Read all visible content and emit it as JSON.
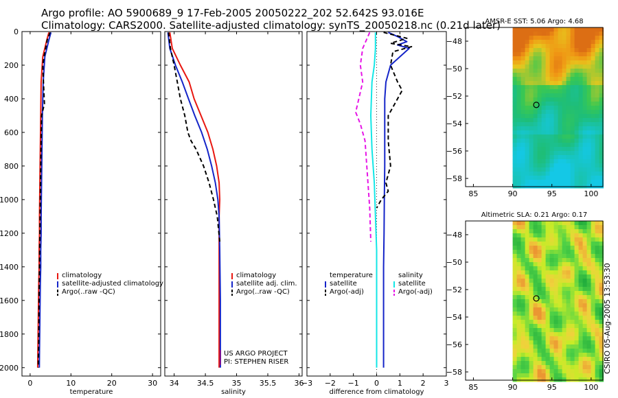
{
  "header": {
    "line1": "Argo profile: AO 5900689_9 17-Feb-2005 20050222_202 52.642S 93.016E",
    "line2": "Climatology: CARS2000. Satellite-adjusted climatology: synTS_20050218.nc (0.21d later)"
  },
  "colors": {
    "climatology": "#e8160f",
    "satellite": "#1424c8",
    "argo": "#000000",
    "salinity_sat": "#12e6e6",
    "argo_adj": "#e614e6"
  },
  "chart_data": [
    {
      "type": "line",
      "id": "temperature",
      "xlabel": "temperature",
      "ylabel": "",
      "xlim": [
        -2,
        32
      ],
      "ylim": [
        2050,
        0
      ],
      "xticks": [
        0,
        10,
        20,
        30
      ],
      "yticks": [
        0,
        200,
        400,
        600,
        800,
        1000,
        1200,
        1400,
        1600,
        1800,
        2000
      ],
      "series": [
        {
          "name": "climatology",
          "color": "#e8160f",
          "dash": "",
          "x": [
            4.6,
            4.1,
            3.1,
            2.7,
            2.6,
            2.5,
            2.4,
            2.3,
            2.3,
            2.2,
            2.2,
            2.1,
            2.0,
            1.9,
            1.85
          ],
          "y": [
            5,
            50,
            150,
            300,
            500,
            700,
            900,
            1100,
            1200,
            1300,
            1400,
            1500,
            1700,
            1900,
            2000
          ]
        },
        {
          "name": "satellite-adjusted climatology",
          "color": "#1424c8",
          "dash": "",
          "x": [
            5.1,
            4.6,
            3.6,
            3.2,
            3.0,
            2.9,
            2.8,
            2.7,
            2.7,
            2.6,
            2.6,
            2.5,
            2.4,
            2.3,
            2.25
          ],
          "y": [
            5,
            50,
            150,
            300,
            500,
            700,
            900,
            1100,
            1200,
            1300,
            1400,
            1500,
            1700,
            1900,
            2000
          ]
        },
        {
          "name": "Argo(..raw -QC)",
          "color": "#000000",
          "dash": "6,4",
          "x": [
            4.9,
            4.2,
            3.8,
            3.4,
            3.1,
            3.3,
            3.5,
            2.8,
            2.7,
            2.6,
            2.5,
            2.4,
            2.3,
            2.2,
            2.15,
            2.1,
            2.0,
            2.0
          ],
          "y": [
            5,
            50,
            100,
            150,
            200,
            320,
            430,
            500,
            650,
            800,
            1000,
            1200,
            1400,
            1550,
            1700,
            1850,
            1950,
            2000
          ]
        }
      ],
      "legend": {
        "position": "lower-middle",
        "entries": [
          "climatology",
          "satellite-adjusted climatology",
          "Argo(..raw -QC)"
        ]
      }
    },
    {
      "type": "line",
      "id": "salinity",
      "xlabel": "salinity",
      "ylabel": "",
      "xlim": [
        33.85,
        36.05
      ],
      "ylim": [
        2050,
        0
      ],
      "xticks": [
        34,
        34.5,
        35,
        35.5,
        36
      ],
      "xticklabels": [
        "34",
        "34.5",
        "35",
        "35.5",
        "36"
      ],
      "series": [
        {
          "name": "climatology",
          "color": "#e8160f",
          "dash": "",
          "x": [
            33.93,
            33.97,
            34.1,
            34.24,
            34.32,
            34.43,
            34.54,
            34.62,
            34.68,
            34.72,
            34.73,
            34.72,
            34.72,
            34.72,
            34.72
          ],
          "y": [
            5,
            100,
            200,
            300,
            400,
            500,
            600,
            700,
            800,
            900,
            1000,
            1100,
            1300,
            1600,
            2000
          ]
        },
        {
          "name": "satellite adj. clim.",
          "color": "#1424c8",
          "dash": "",
          "x": [
            33.9,
            33.93,
            34.02,
            34.13,
            34.23,
            34.33,
            34.44,
            34.53,
            34.6,
            34.66,
            34.7,
            34.72,
            34.73,
            34.74,
            34.74
          ],
          "y": [
            5,
            100,
            200,
            300,
            400,
            500,
            600,
            700,
            800,
            900,
            1000,
            1100,
            1300,
            1600,
            2000
          ]
        },
        {
          "name": "Argo(..raw -QC)",
          "color": "#000000",
          "dash": "6,4",
          "x": [
            33.91,
            33.94,
            34.0,
            34.05,
            34.1,
            34.17,
            34.22,
            34.27,
            34.35,
            34.47,
            34.56,
            34.63,
            34.69,
            34.73
          ],
          "y": [
            5,
            100,
            200,
            300,
            400,
            500,
            600,
            650,
            700,
            800,
            900,
            1000,
            1100,
            1250
          ]
        }
      ],
      "legend": {
        "position": "lower-middle",
        "entries": [
          "climatology",
          "satellite adj. clim.",
          "Argo(..raw -QC)"
        ]
      },
      "annotations": [
        "US ARGO PROJECT",
        "PI: STEPHEN RISER"
      ]
    },
    {
      "type": "line",
      "id": "difference",
      "xlabel": "difference from climatology",
      "ylabel": "",
      "xlim": [
        -3,
        3
      ],
      "ylim": [
        2050,
        0
      ],
      "xticks": [
        -3,
        -2,
        -1,
        0,
        1,
        2,
        3
      ],
      "series": [
        {
          "name": "temperature satellite",
          "color": "#1424c8",
          "dash": "",
          "x": [
            0.5,
            0.9,
            1.3,
            0.9,
            1.4,
            1.0,
            0.6,
            0.4,
            0.35,
            0.35,
            0.35,
            0.33,
            0.32,
            0.3,
            0.3,
            0.3,
            0.3
          ],
          "y": [
            5,
            30,
            60,
            80,
            100,
            150,
            200,
            300,
            400,
            600,
            800,
            1000,
            1200,
            1400,
            1600,
            1800,
            2000
          ]
        },
        {
          "name": "temperature Argo(-adj)",
          "color": "#000000",
          "dash": "6,4",
          "x": [
            0.3,
            1.3,
            0.6,
            1.5,
            0.7,
            0.6,
            0.9,
            1.1,
            0.7,
            0.5,
            0.5,
            0.6,
            0.4,
            0.5,
            0.2,
            0.0
          ],
          "y": [
            5,
            40,
            70,
            90,
            120,
            200,
            300,
            350,
            450,
            500,
            650,
            800,
            900,
            950,
            1000,
            1050
          ]
        },
        {
          "name": "salinity satellite",
          "color": "#12e6e6",
          "dash": "",
          "x": [
            -0.05,
            -0.05,
            -0.1,
            -0.2,
            -0.25,
            -0.2,
            -0.1,
            -0.05,
            0.0,
            0.0,
            0.0,
            0.0
          ],
          "y": [
            5,
            100,
            200,
            300,
            500,
            700,
            900,
            1100,
            1300,
            1500,
            1700,
            2000
          ]
        },
        {
          "name": "salinity Argo(-adj)",
          "color": "#e614e6",
          "dash": "6,4",
          "x": [
            -0.3,
            -0.6,
            -0.7,
            -0.6,
            -0.9,
            -0.7,
            -0.5,
            -0.4,
            -0.3,
            -0.25
          ],
          "y": [
            5,
            100,
            200,
            300,
            480,
            550,
            650,
            850,
            1050,
            1250
          ]
        }
      ],
      "legend": {
        "position": "lower-middle",
        "groups": [
          {
            "title": "temperature",
            "entries": [
              "satellite",
              "Argo(-adj)"
            ]
          },
          {
            "title": "salinity",
            "entries": [
              "satellite",
              "Argo(-adj)"
            ]
          }
        ]
      }
    },
    {
      "type": "heatmap",
      "id": "sst-map",
      "title": "AMSR-E SST: 5.06 Argo: 4.68",
      "xlim": [
        84,
        101.5
      ],
      "ylim": [
        -58.6,
        -47
      ],
      "xticks": [
        85,
        90,
        95,
        100
      ],
      "yticks": [
        -48,
        -50,
        -52,
        -54,
        -56,
        -58
      ],
      "data_xlim": [
        90,
        101.5
      ],
      "marker": {
        "lon": 93.016,
        "lat": -52.642
      }
    },
    {
      "type": "heatmap",
      "id": "sla-map",
      "title": "Altimetric SLA: 0.21 Argo: 0.17",
      "xlim": [
        84,
        101.5
      ],
      "ylim": [
        -58.6,
        -47
      ],
      "xticks": [
        85,
        90,
        95,
        100
      ],
      "yticks": [
        -48,
        -50,
        -52,
        -54,
        -56,
        -58
      ],
      "data_xlim": [
        90,
        101.5
      ],
      "marker": {
        "lon": 93.016,
        "lat": -52.642
      }
    }
  ],
  "footer": {
    "stamp": "CSIRO 05-Aug-2005 13:53:30"
  }
}
